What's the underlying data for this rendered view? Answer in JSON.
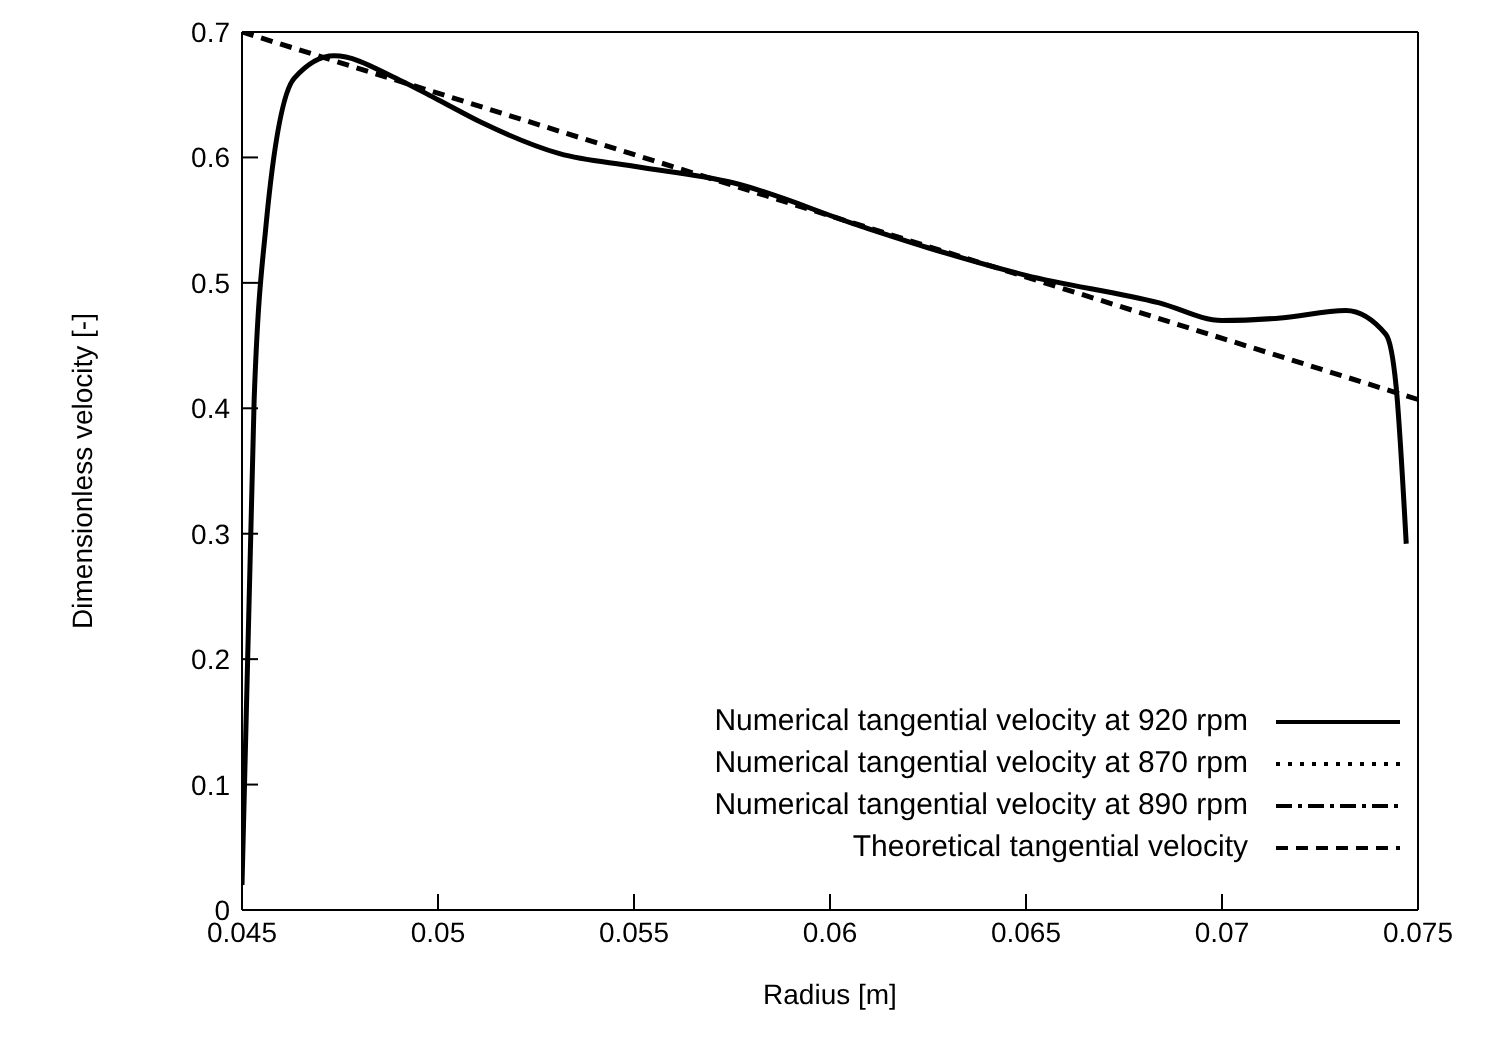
{
  "chart_data": {
    "type": "line",
    "xlabel": "Radius [m]",
    "ylabel": "Dimensionless velocity [-]",
    "xlim": [
      0.045,
      0.075
    ],
    "xticks": [
      0.045,
      0.05,
      0.055,
      0.06,
      0.065,
      0.07,
      0.075
    ],
    "ylim": [
      0,
      0.7
    ],
    "yticks": [
      0,
      0.1,
      0.2,
      0.3,
      0.4,
      0.5,
      0.6,
      0.7
    ],
    "grid": false,
    "legend": "bottom right",
    "marker": "none",
    "series": [
      {
        "name": "Numerical tangential velocity at 920 rpm",
        "color": "#000000",
        "line_style": "solid",
        "x": [
          0.045,
          0.04531,
          0.04561,
          0.04633,
          0.04735,
          0.049,
          0.05,
          0.0511,
          0.0531,
          0.055,
          0.0575,
          0.0608,
          0.0625,
          0.065,
          0.0684,
          0.07,
          0.0715,
          0.07316,
          0.07418,
          0.07444,
          0.0747
        ],
        "values": [
          0.02,
          0.407,
          0.545,
          0.663,
          0.681,
          0.662,
          0.646,
          0.628,
          0.603,
          0.593,
          0.58,
          0.545,
          0.528,
          0.506,
          0.484,
          0.47,
          0.472,
          0.478,
          0.459,
          0.418,
          0.292
        ]
      },
      {
        "name": "Numerical tangential velocity at 870 rpm",
        "color": "#000000",
        "line_style": "dotted"
      },
      {
        "name": "Numerical tangential velocity at 890 rpm",
        "color": "#000000",
        "line_style": "dashdot"
      },
      {
        "name": "Theoretical tangential velocity",
        "color": "#000000",
        "line_style": "dashed",
        "x": [
          0.045,
          0.075
        ],
        "values": [
          0.7,
          0.407
        ]
      }
    ]
  }
}
